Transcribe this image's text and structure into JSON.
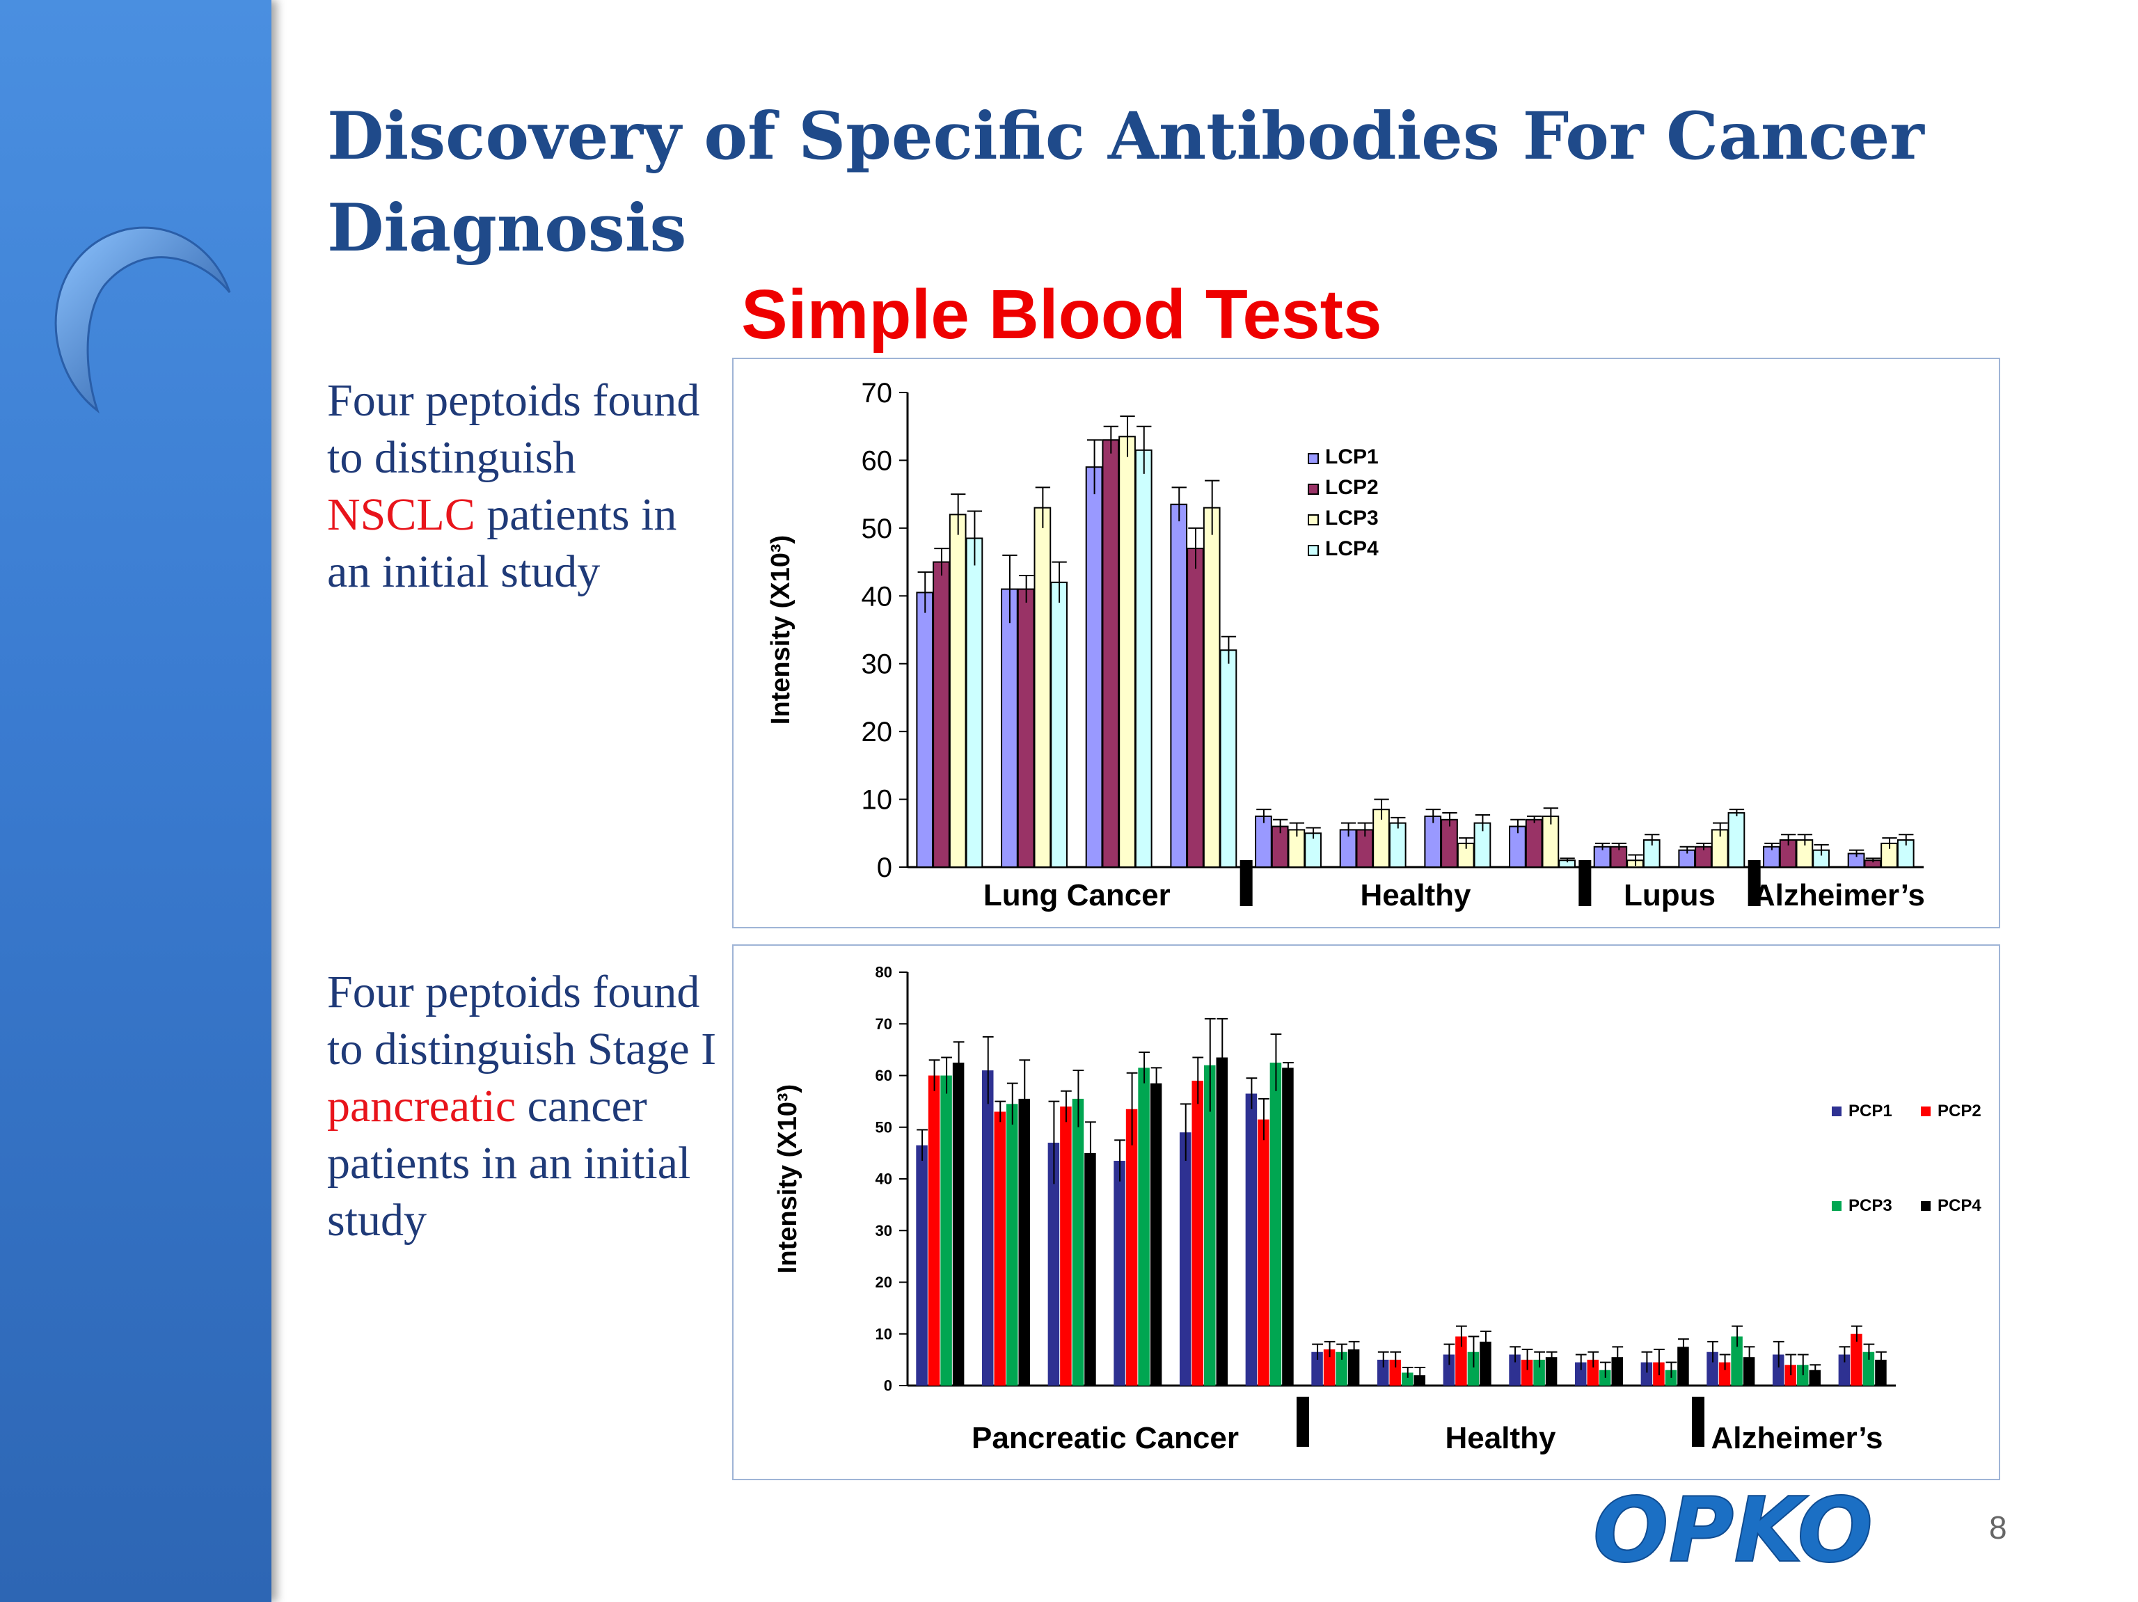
{
  "slide": {
    "title": "Discovery of Specific Antibodies For Cancer Diagnosis",
    "subtitle": "Simple Blood Tests",
    "page_number": "8",
    "brand": "OPKO",
    "colors": {
      "sidebar": "#3a7bd0",
      "title": "#1f4a8a",
      "highlight": "#e8141b",
      "body": "#1f3a78",
      "brand": "#1b6fc4"
    }
  },
  "text_top": {
    "part1": "Four peptoids found to distinguish ",
    "highlight": "NSCLC",
    "part2": " patients in an initial study"
  },
  "text_bottom": {
    "part1": "Four peptoids found to distinguish Stage I ",
    "highlight": "pancreatic",
    "part2": " cancer patients in an initial study"
  },
  "chart_data": [
    {
      "type": "bar",
      "ylabel": "Intensity (X10³)",
      "ylim": [
        0,
        70
      ],
      "yticks": [
        0,
        10,
        20,
        30,
        40,
        50,
        60,
        70
      ],
      "group_labels": [
        {
          "label": "Lung Cancer",
          "from": 0,
          "to": 4
        },
        {
          "label": "Healthy",
          "from": 4,
          "to": 8
        },
        {
          "label": "Lupus",
          "from": 8,
          "to": 10
        },
        {
          "label": "Alzheimer’s",
          "from": 10,
          "to": 12
        }
      ],
      "dividers": [
        4,
        8,
        10
      ],
      "legend_position": "upper-middle",
      "series": [
        {
          "name": "LCP1",
          "color": "#9999ff",
          "values": [
            40.5,
            41,
            59,
            53.5,
            7.5,
            5.5,
            7.5,
            6,
            3,
            2.5,
            3,
            2
          ],
          "errors": [
            3,
            5,
            4,
            2.5,
            1,
            1,
            1,
            1,
            0.5,
            0.5,
            0.5,
            0.5
          ]
        },
        {
          "name": "LCP2",
          "color": "#993366",
          "values": [
            45,
            41,
            63,
            47,
            6,
            5.5,
            7,
            7,
            3,
            3,
            4,
            1
          ],
          "errors": [
            2,
            2,
            2,
            3,
            1,
            1,
            1,
            0.5,
            0.5,
            0.5,
            0.8,
            0.3
          ]
        },
        {
          "name": "LCP3",
          "color": "#ffffcc",
          "values": [
            52,
            53,
            63.5,
            53,
            5.5,
            8.5,
            3.5,
            7.5,
            1,
            5.5,
            4,
            3.5
          ],
          "errors": [
            3,
            3,
            3,
            4,
            1,
            1.5,
            0.8,
            1.2,
            0.8,
            1,
            0.8,
            0.8
          ]
        },
        {
          "name": "LCP4",
          "color": "#ccffff",
          "values": [
            48.5,
            42,
            61.5,
            32,
            5,
            6.5,
            6.5,
            1,
            4,
            8,
            2.5,
            4
          ],
          "errors": [
            4,
            3,
            3.5,
            2,
            0.8,
            0.8,
            1.2,
            0.3,
            0.8,
            0.5,
            0.8,
            0.8
          ]
        }
      ]
    },
    {
      "type": "bar",
      "ylabel": "Intensity (X10³)",
      "ylim": [
        0,
        80
      ],
      "yticks": [
        0,
        10,
        20,
        30,
        40,
        50,
        60,
        70,
        80
      ],
      "group_labels": [
        {
          "label": "Pancreatic Cancer",
          "from": 0,
          "to": 6
        },
        {
          "label": "Healthy",
          "from": 6,
          "to": 12
        },
        {
          "label": "Alzheimer’s",
          "from": 12,
          "to": 15
        }
      ],
      "dividers": [
        6,
        12
      ],
      "legend_position": "right",
      "series": [
        {
          "name": "PCP1",
          "color": "#2e3192",
          "values": [
            46.5,
            61,
            47,
            43.5,
            49,
            56.5,
            6.5,
            5,
            6,
            6,
            4.5,
            4.5,
            6.5,
            6,
            6
          ],
          "errors": [
            3,
            6.5,
            8,
            4,
            5.5,
            3,
            1.5,
            1.5,
            2,
            1.5,
            1.5,
            2,
            2,
            2.5,
            1.5
          ]
        },
        {
          "name": "PCP2",
          "color": "#ff0000",
          "values": [
            60,
            53,
            54,
            53.5,
            59,
            51.5,
            7,
            5,
            9.5,
            5,
            5,
            4.5,
            4.5,
            4,
            10
          ],
          "errors": [
            3,
            2,
            3,
            7,
            4.5,
            4,
            1.5,
            1.5,
            2,
            2,
            1.5,
            2.5,
            1.5,
            2,
            1.5
          ]
        },
        {
          "name": "PCP3",
          "color": "#00a651",
          "values": [
            60,
            54.5,
            55.5,
            61.5,
            62,
            62.5,
            6.5,
            2.5,
            6.5,
            5,
            3,
            3,
            9.5,
            4,
            6.5
          ],
          "errors": [
            3.5,
            4,
            5.5,
            3,
            9,
            5.5,
            1.5,
            1,
            3,
            1.5,
            1.5,
            1.5,
            2,
            2,
            1.5
          ]
        },
        {
          "name": "PCP4",
          "color": "#000000",
          "values": [
            62.5,
            55.5,
            45,
            58.5,
            63.5,
            61.5,
            7,
            2,
            8.5,
            5.5,
            5.5,
            7.5,
            5.5,
            3,
            5
          ],
          "errors": [
            4,
            7.5,
            6,
            3,
            7.5,
            1,
            1.5,
            1.5,
            2,
            1,
            2,
            1.5,
            2,
            1,
            1.5
          ]
        }
      ]
    }
  ]
}
